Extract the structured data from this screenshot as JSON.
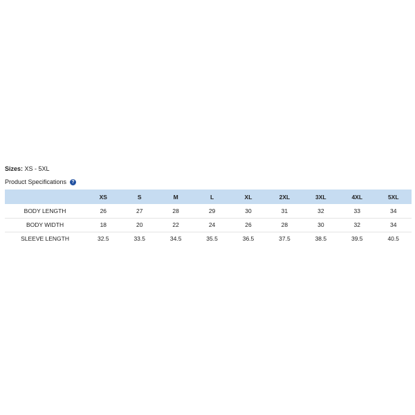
{
  "sizes": {
    "label": "Sizes:",
    "value": " XS - 5XL"
  },
  "spec_title": "Product Specifications",
  "help_icon_glyph": "?",
  "table": {
    "corner": "",
    "columns": [
      "XS",
      "S",
      "M",
      "L",
      "XL",
      "2XL",
      "3XL",
      "4XL",
      "5XL"
    ],
    "rows": [
      {
        "label": "BODY LENGTH",
        "values": [
          "26",
          "27",
          "28",
          "29",
          "30",
          "31",
          "32",
          "33",
          "34"
        ]
      },
      {
        "label": "BODY WIDTH",
        "values": [
          "18",
          "20",
          "22",
          "24",
          "26",
          "28",
          "30",
          "32",
          "34"
        ]
      },
      {
        "label": "SLEEVE LENGTH",
        "values": [
          "32.5",
          "33.5",
          "34.5",
          "35.5",
          "36.5",
          "37.5",
          "38.5",
          "39.5",
          "40.5"
        ]
      }
    ]
  },
  "colors": {
    "header_bg": "#c6dcf1",
    "help_icon": "#1f4fa0"
  }
}
